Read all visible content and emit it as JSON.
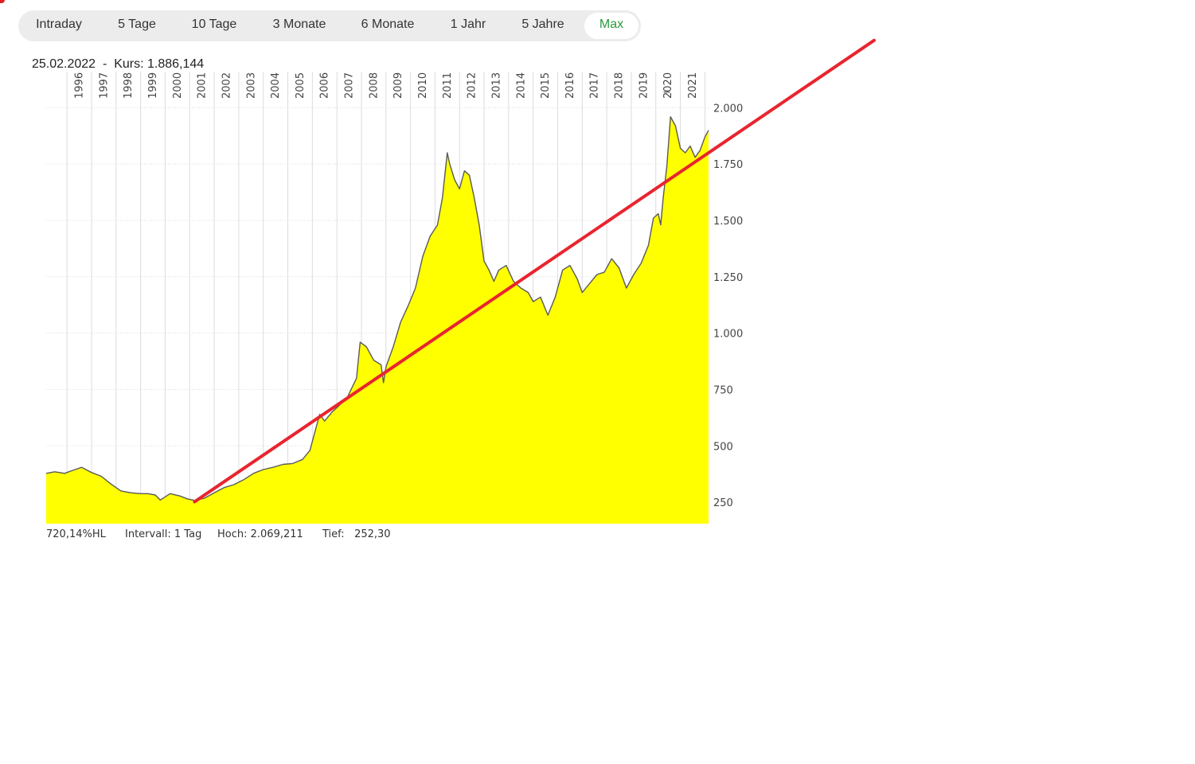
{
  "tabs": [
    {
      "label": "Intraday",
      "active": false
    },
    {
      "label": "5 Tage",
      "active": false
    },
    {
      "label": "10 Tage",
      "active": false
    },
    {
      "label": "3 Monate",
      "active": false
    },
    {
      "label": "6 Monate",
      "active": false
    },
    {
      "label": "1 Jahr",
      "active": false
    },
    {
      "label": "5 Jahre",
      "active": false
    },
    {
      "label": "Max",
      "active": true
    }
  ],
  "header": {
    "date": "25.02.2022",
    "separator": "-",
    "price_label": "Kurs:",
    "price_value": "1.886,144"
  },
  "footer": {
    "range_pct": "720,14%HL",
    "interval": "Intervall: 1 Tag",
    "high": "Hoch: 2.069,211",
    "low_label": "Tief:",
    "low_value": "252,30"
  },
  "colors": {
    "area_fill": "#ffff00",
    "price_line": "#5a5a5a",
    "trendline": "#e8252f",
    "grid": "#dcdcdc",
    "active_tab": "#2a9a3c"
  },
  "chart_data": {
    "type": "area",
    "title": "",
    "xlabel": "",
    "ylabel": "",
    "x_ticks": [
      "1996",
      "1997",
      "1998",
      "1999",
      "2000",
      "2001",
      "2002",
      "2003",
      "2004",
      "2005",
      "2006",
      "2007",
      "2008",
      "2009",
      "2010",
      "2011",
      "2012",
      "2013",
      "2014",
      "2015",
      "2016",
      "2017",
      "2018",
      "2019",
      "2020",
      "2021"
    ],
    "y_ticks": [
      "250",
      "500",
      "750",
      "1.000",
      "1.250",
      "1.500",
      "1.750",
      "2.000"
    ],
    "y_tick_values": [
      250,
      500,
      750,
      1000,
      1250,
      1500,
      1750,
      2000
    ],
    "xlim": [
      1995.15,
      2022.15
    ],
    "ylim": [
      155,
      2160
    ],
    "grid": true,
    "series": [
      {
        "x": [
          1995.15,
          1995.5,
          1995.9,
          1996.2,
          1996.6,
          1997.0,
          1997.4,
          1997.8,
          1998.2,
          1998.6,
          1999.0,
          1999.3,
          1999.6,
          1999.8,
          2000.2,
          2000.6,
          2000.9,
          2001.2,
          2001.6,
          2002.0,
          2002.4,
          2002.8,
          2003.2,
          2003.6,
          2004.0,
          2004.4,
          2004.8,
          2005.2,
          2005.6,
          2005.9,
          2006.1,
          2006.3,
          2006.5,
          2006.8,
          2007.1,
          2007.4,
          2007.8,
          2007.95,
          2008.2,
          2008.5,
          2008.8,
          2008.9,
          2009.0,
          2009.3,
          2009.6,
          2009.9,
          2010.2,
          2010.5,
          2010.8,
          2011.1,
          2011.3,
          2011.5,
          2011.6,
          2011.8,
          2012.0,
          2012.2,
          2012.4,
          2012.6,
          2012.8,
          2013.0,
          2013.2,
          2013.4,
          2013.6,
          2013.9,
          2014.2,
          2014.5,
          2014.8,
          2015.0,
          2015.3,
          2015.6,
          2015.9,
          2016.2,
          2016.5,
          2016.8,
          2017.0,
          2017.3,
          2017.6,
          2017.9,
          2018.2,
          2018.5,
          2018.8,
          2019.1,
          2019.4,
          2019.7,
          2019.9,
          2020.1,
          2020.2,
          2020.3,
          2020.45,
          2020.6,
          2020.8,
          2021.0,
          2021.2,
          2021.4,
          2021.6,
          2021.8,
          2022.0,
          2022.15
        ],
        "values": [
          378,
          385,
          378,
          390,
          405,
          382,
          365,
          330,
          300,
          292,
          288,
          288,
          282,
          260,
          288,
          278,
          265,
          258,
          268,
          292,
          315,
          328,
          350,
          378,
          395,
          405,
          418,
          422,
          440,
          480,
          560,
          640,
          610,
          650,
          680,
          710,
          800,
          960,
          940,
          880,
          860,
          780,
          850,
          940,
          1050,
          1120,
          1200,
          1340,
          1430,
          1480,
          1600,
          1800,
          1750,
          1680,
          1640,
          1720,
          1700,
          1600,
          1480,
          1320,
          1280,
          1230,
          1280,
          1300,
          1230,
          1200,
          1180,
          1140,
          1160,
          1080,
          1160,
          1280,
          1300,
          1240,
          1180,
          1220,
          1260,
          1270,
          1330,
          1290,
          1200,
          1260,
          1310,
          1390,
          1510,
          1530,
          1480,
          1600,
          1740,
          1960,
          1920,
          1820,
          1800,
          1830,
          1780,
          1810,
          1870,
          1900
        ]
      }
    ],
    "trendline": {
      "x": [
        2001.2,
        2022.15
      ],
      "y": [
        252,
        1800
      ],
      "x_end_extended": 2028.9
    }
  }
}
